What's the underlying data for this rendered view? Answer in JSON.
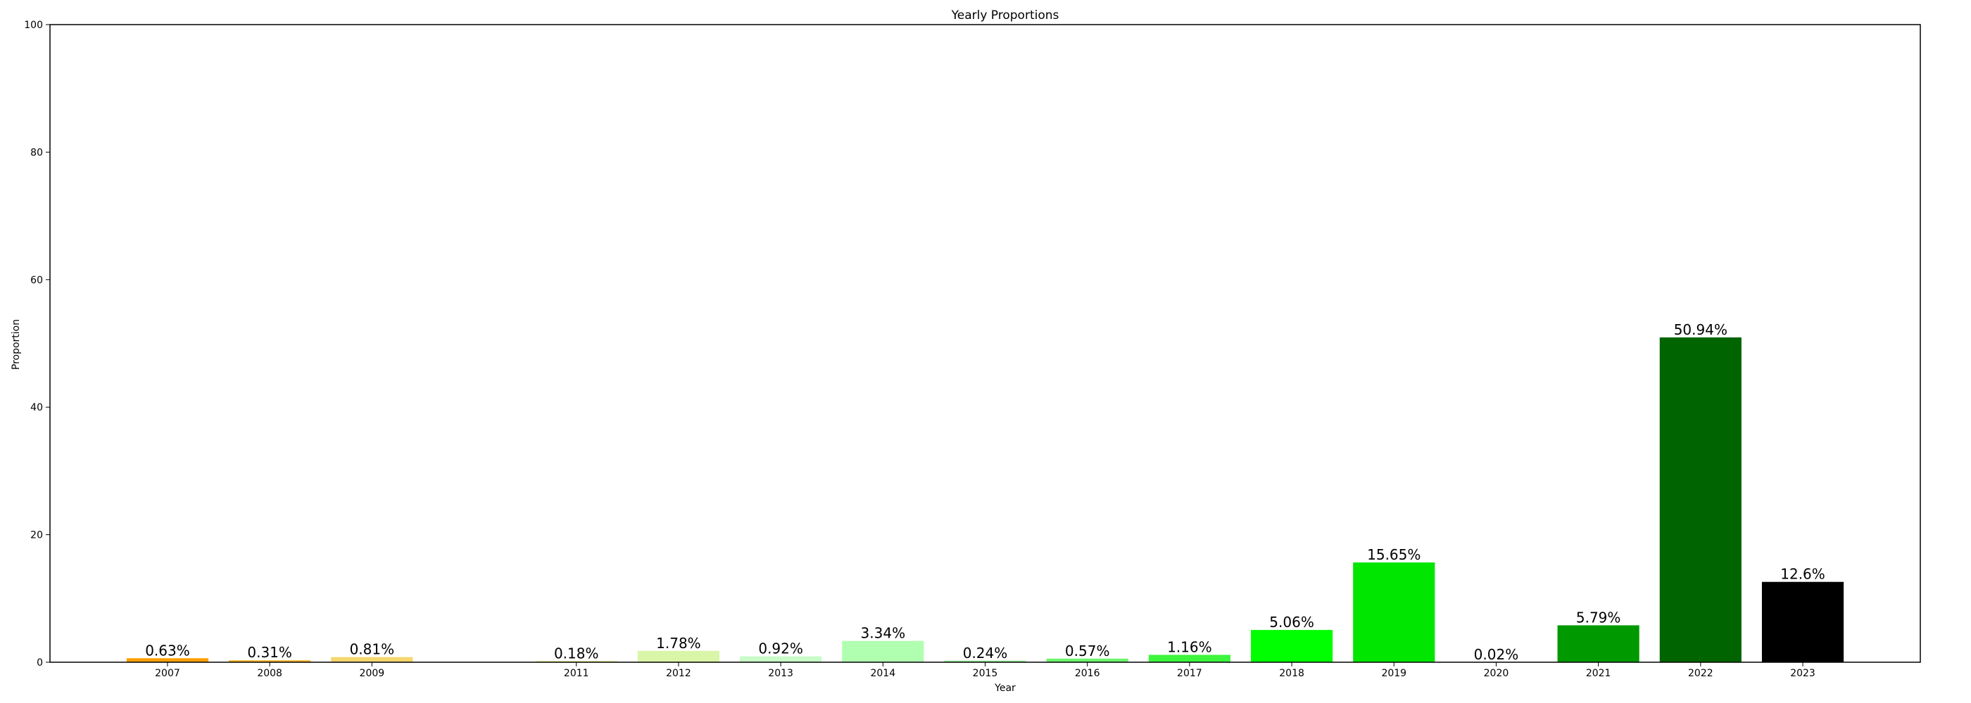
{
  "chart_data": {
    "type": "bar",
    "title": "Yearly Proportions",
    "xlabel": "Year",
    "ylabel": "Proportion",
    "ylim": [
      0,
      100
    ],
    "yticks": [
      0,
      20,
      40,
      60,
      80,
      100
    ],
    "grid": false,
    "categories": [
      "2007",
      "2008",
      "2009",
      "2011",
      "2012",
      "2013",
      "2014",
      "2015",
      "2016",
      "2017",
      "2018",
      "2019",
      "2020",
      "2021",
      "2022",
      "2023"
    ],
    "x": [
      2007,
      2008,
      2009,
      2011,
      2012,
      2013,
      2014,
      2015,
      2016,
      2017,
      2018,
      2019,
      2020,
      2021,
      2022,
      2023
    ],
    "values": [
      0.63,
      0.31,
      0.81,
      0.18,
      1.78,
      0.92,
      3.34,
      0.24,
      0.57,
      1.16,
      5.06,
      15.65,
      0.02,
      5.79,
      50.94,
      12.6
    ],
    "value_labels": [
      "0.63%",
      "0.31%",
      "0.81%",
      "0.18%",
      "1.78%",
      "0.92%",
      "3.34%",
      "0.24%",
      "0.57%",
      "1.16%",
      "5.06%",
      "15.65%",
      "0.02%",
      "5.79%",
      "50.94%",
      "12.6%"
    ],
    "colors": [
      "#ff9f00",
      "#ffb52e",
      "#f5d76e",
      "#e8e87a",
      "#d9f5a8",
      "#c8fcc8",
      "#b0ffb0",
      "#8ef58e",
      "#6ef56e",
      "#3ef53e",
      "#00ff00",
      "#00e600",
      "#00cc00",
      "#009900",
      "#006400",
      "#000000"
    ]
  }
}
